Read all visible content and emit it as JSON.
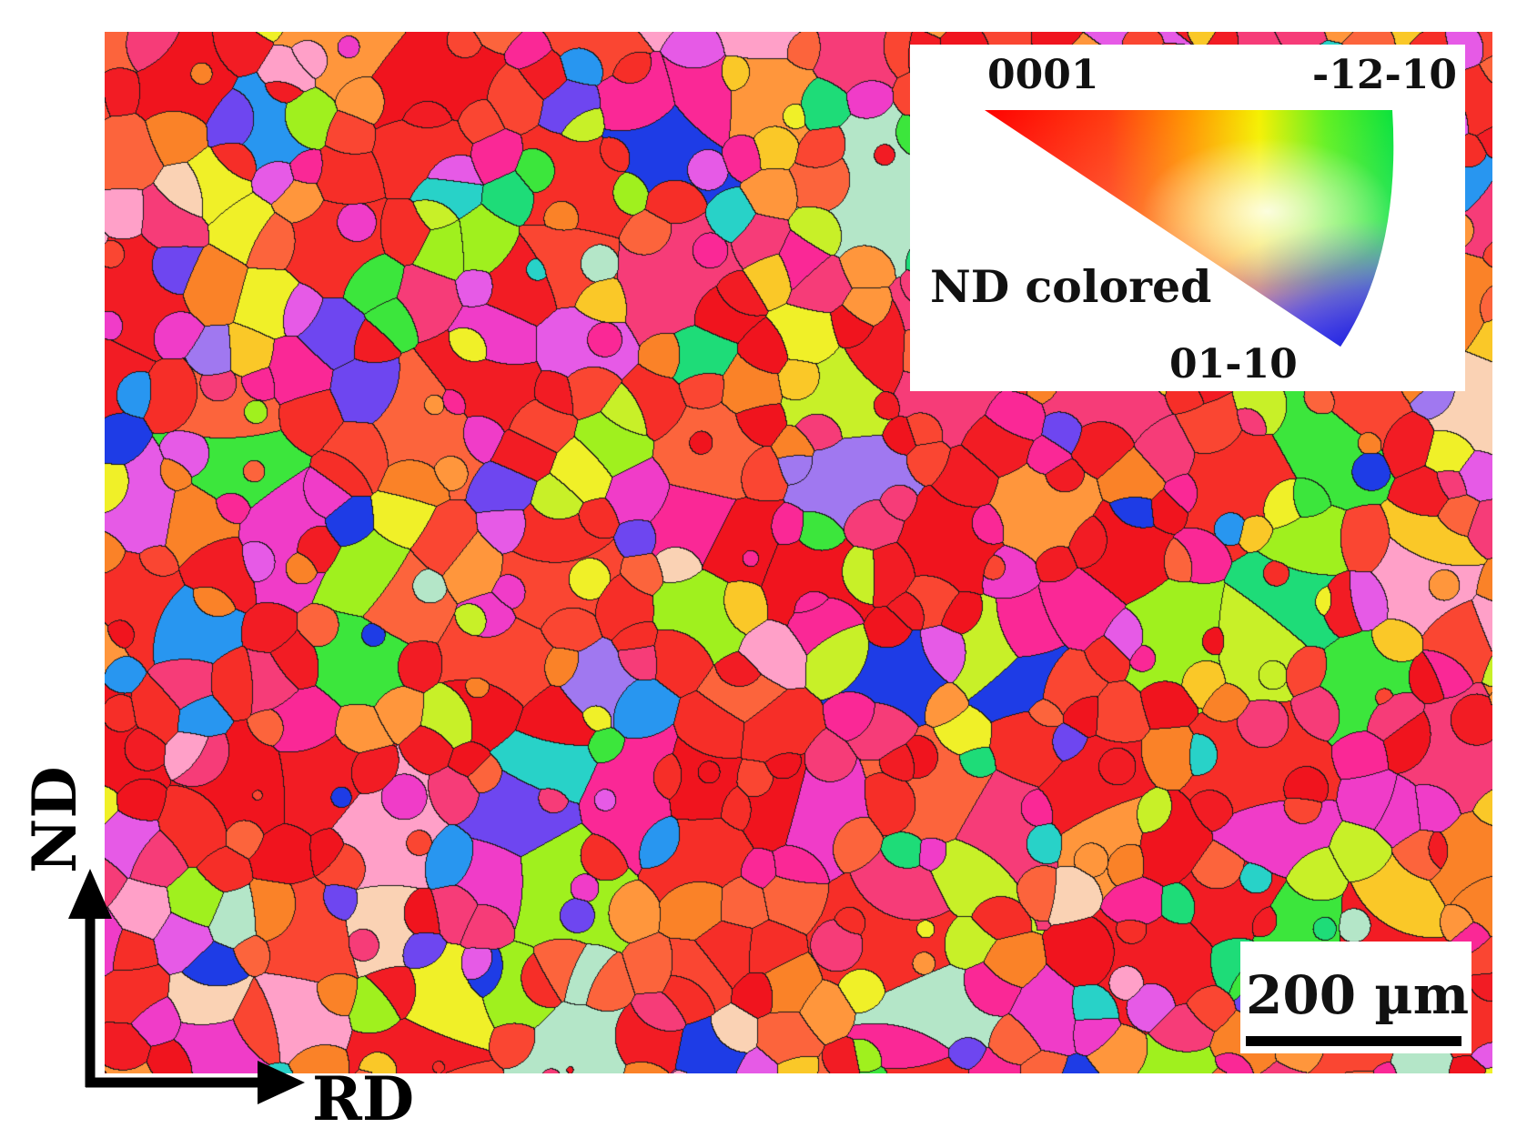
{
  "figure": {
    "inset": {
      "pole_0001": "0001",
      "pole_12_10": "-12-10",
      "pole_01_10": "01-10",
      "legend_title": "ND colored"
    },
    "scale_bar": {
      "label": "200 µm"
    },
    "axes": {
      "rd_label": "RD",
      "nd_label": "ND"
    },
    "colors": {
      "red": "#f21c24",
      "green": "#22e83a",
      "blue": "#1a2ce0",
      "grain_boundary": "#1a1a1a"
    },
    "icons": [
      "nd-arrow-icon",
      "rd-arrow-icon"
    ]
  }
}
